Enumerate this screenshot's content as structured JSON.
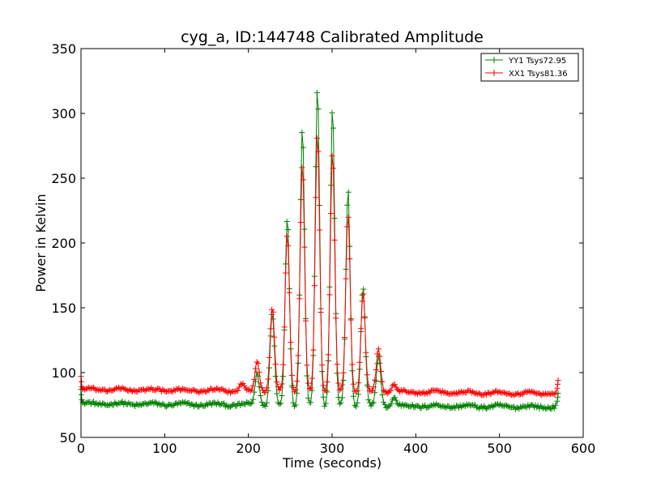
{
  "chart_data": {
    "type": "line",
    "title": "cyg_a, ID:144748 Calibrated Amplitude",
    "xlabel": "Time (seconds)",
    "ylabel": "Power in Kelvin",
    "xlim": [
      0,
      600
    ],
    "ylim": [
      50,
      350
    ],
    "xticks": [
      0,
      100,
      200,
      300,
      400,
      500,
      600
    ],
    "yticks": [
      50,
      100,
      150,
      200,
      250,
      300,
      350
    ],
    "legend_position": "top-right",
    "series": [
      {
        "name": "YY1 Tsys72.95",
        "color": "#008000",
        "baseline": 76,
        "baseline_end": 73.5,
        "noise": 1.2,
        "start_value": 87,
        "end_value": 84,
        "peaks": [
          {
            "x": 210.5,
            "value": 100
          },
          {
            "x": 228.5,
            "value": 146
          },
          {
            "x": 246.5,
            "value": 220
          },
          {
            "x": 264.5,
            "value": 289
          },
          {
            "x": 282.5,
            "value": 321
          },
          {
            "x": 300.5,
            "value": 304
          },
          {
            "x": 319,
            "value": 241
          },
          {
            "x": 337,
            "value": 166
          },
          {
            "x": 355.5,
            "value": 112
          },
          {
            "x": 374,
            "value": 81
          }
        ]
      },
      {
        "name": "XX1 Tsys81.36",
        "color": "#ff0000",
        "baseline": 87,
        "baseline_end": 84,
        "noise": 1.0,
        "start_value": 97,
        "end_value": 94,
        "peaks": [
          {
            "x": 192,
            "value": 91
          },
          {
            "x": 210.5,
            "value": 110
          },
          {
            "x": 228.5,
            "value": 150
          },
          {
            "x": 246.5,
            "value": 208
          },
          {
            "x": 264.5,
            "value": 262
          },
          {
            "x": 282.5,
            "value": 285
          },
          {
            "x": 300.5,
            "value": 271
          },
          {
            "x": 319,
            "value": 222
          },
          {
            "x": 337,
            "value": 162
          },
          {
            "x": 355.5,
            "value": 118
          },
          {
            "x": 374,
            "value": 92
          }
        ]
      }
    ]
  }
}
